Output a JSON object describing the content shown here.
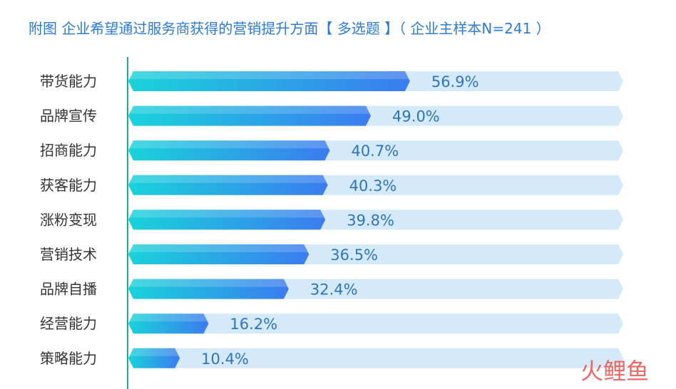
{
  "title": "附图 企业希望通过服务商获得的营销提升方面【 多选题 】（ 企业主样本N=241 ）",
  "watermark": "火鲤鱼",
  "colors": {
    "title": "#2c7bd6",
    "axis": "#1aaa9e",
    "bar_start": "#19d3da",
    "bar_end": "#3b7bf0",
    "track": "#d4eafb",
    "value_text": "#2f74c0",
    "watermark": "#e8504a"
  },
  "chart_data": {
    "type": "bar",
    "orientation": "horizontal",
    "categories": [
      "带货能力",
      "品牌宣传",
      "招商能力",
      "获客能力",
      "涨粉变现",
      "营销技术",
      "品牌自播",
      "经营能力",
      "策略能力"
    ],
    "values": [
      56.9,
      49.0,
      40.7,
      40.3,
      39.8,
      36.5,
      32.4,
      16.2,
      10.4
    ],
    "value_labels": [
      "56.9%",
      "49.0%",
      "40.7%",
      "40.3%",
      "39.8%",
      "36.5%",
      "32.4%",
      "16.2%",
      "10.4%"
    ],
    "unit": "%",
    "xlim": [
      0,
      100
    ],
    "grid": false,
    "legend": "none",
    "title": "附图 企业希望通过服务商获得的营销提升方面【 多选题 】（ 企业主样本N=241 ）"
  }
}
